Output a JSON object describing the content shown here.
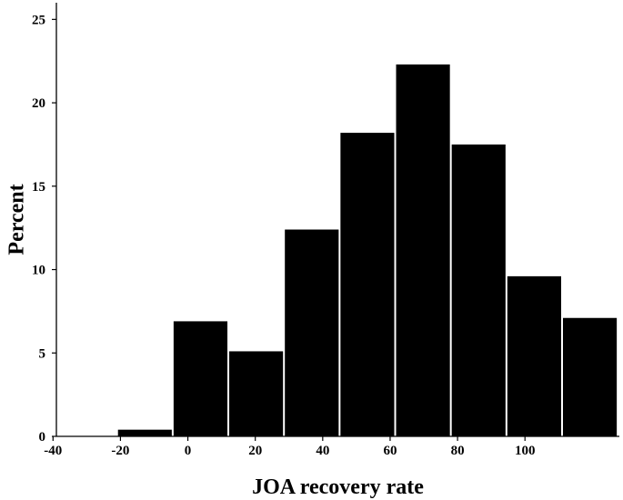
{
  "chart_data": {
    "type": "bar",
    "title": "",
    "xlabel": "JOA recovery rate",
    "ylabel": "Percent",
    "bin_width": 16.5,
    "bins": [
      {
        "x0": -37.5,
        "x1": -21,
        "value": 0
      },
      {
        "x0": -21,
        "x1": -4.5,
        "value": 0.4
      },
      {
        "x0": -4.5,
        "x1": 12,
        "value": 6.9
      },
      {
        "x0": 12,
        "x1": 28.5,
        "value": 5.1
      },
      {
        "x0": 28.5,
        "x1": 45,
        "value": 12.4
      },
      {
        "x0": 45,
        "x1": 61.5,
        "value": 18.2
      },
      {
        "x0": 61.5,
        "x1": 78,
        "value": 22.3
      },
      {
        "x0": 78,
        "x1": 94.5,
        "value": 17.5
      },
      {
        "x0": 94.5,
        "x1": 111,
        "value": 9.6
      },
      {
        "x0": 111,
        "x1": 127.5,
        "value": 7.1
      }
    ],
    "x_ticks": [
      "-40",
      "-20",
      "0",
      "20",
      "40",
      "60",
      "80",
      "100"
    ],
    "y_ticks": [
      "0",
      "5",
      "10",
      "15",
      "20",
      "25"
    ],
    "xlim": [
      -39,
      128
    ],
    "ylim": [
      0,
      26
    ],
    "bar_color": "#000000",
    "grid": false,
    "legend": "none"
  }
}
